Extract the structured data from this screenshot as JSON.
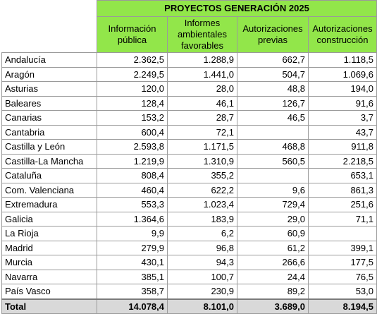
{
  "title": "PROYECTOS GENERACIÓN 2025",
  "columns": [
    "Información pública",
    "Informes ambientales favorables",
    "Autorizaciones previas",
    "Autorizaciones construcción"
  ],
  "rows": [
    {
      "region": "Andalucía",
      "values": [
        "2.362,5",
        "1.288,9",
        "662,7",
        "1.118,5"
      ]
    },
    {
      "region": "Aragón",
      "values": [
        "2.249,5",
        "1.441,0",
        "504,7",
        "1.069,6"
      ]
    },
    {
      "region": "Asturias",
      "values": [
        "120,0",
        "28,0",
        "48,8",
        "194,0"
      ]
    },
    {
      "region": "Baleares",
      "values": [
        "128,4",
        "46,1",
        "126,7",
        "91,6"
      ]
    },
    {
      "region": "Canarias",
      "values": [
        "153,2",
        "28,7",
        "46,5",
        "3,7"
      ]
    },
    {
      "region": "Cantabria",
      "values": [
        "600,4",
        "72,1",
        "",
        "43,7"
      ]
    },
    {
      "region": "Castilla y León",
      "values": [
        "2.593,8",
        "1.171,5",
        "468,8",
        "911,8"
      ]
    },
    {
      "region": "Castilla-La Mancha",
      "values": [
        "1.219,9",
        "1.310,9",
        "560,5",
        "2.218,5"
      ]
    },
    {
      "region": "Cataluña",
      "values": [
        "808,4",
        "355,2",
        "",
        "653,1"
      ]
    },
    {
      "region": "Com. Valenciana",
      "values": [
        "460,4",
        "622,2",
        "9,6",
        "861,3"
      ]
    },
    {
      "region": "Extremadura",
      "values": [
        "553,3",
        "1.023,4",
        "729,4",
        "251,6"
      ]
    },
    {
      "region": "Galicia",
      "values": [
        "1.364,6",
        "183,9",
        "29,0",
        "71,1"
      ]
    },
    {
      "region": "La Rioja",
      "values": [
        "9,9",
        "6,2",
        "60,9",
        ""
      ]
    },
    {
      "region": "Madrid",
      "values": [
        "279,9",
        "96,8",
        "61,2",
        "399,1"
      ]
    },
    {
      "region": "Murcia",
      "values": [
        "430,1",
        "94,3",
        "266,6",
        "177,5"
      ]
    },
    {
      "region": "Navarra",
      "values": [
        "385,1",
        "100,7",
        "24,4",
        "76,5"
      ]
    },
    {
      "region": "País Vasco",
      "values": [
        "358,7",
        "230,9",
        "89,2",
        "53,0"
      ]
    }
  ],
  "total": {
    "label": "Total",
    "values": [
      "14.078,4",
      "8.101,0",
      "3.689,0",
      "8.194,5"
    ]
  },
  "colors": {
    "header_green": "#92e64a",
    "total_gray": "#d9d9d9",
    "border": "#9a9a9a"
  }
}
